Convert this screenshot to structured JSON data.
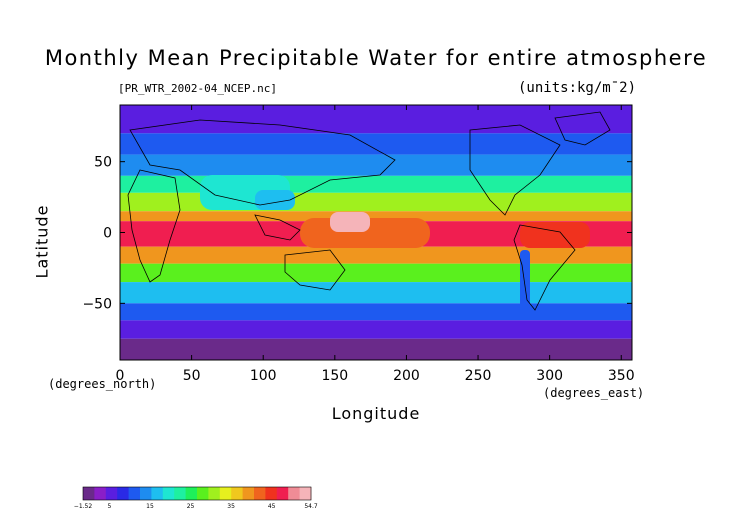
{
  "title": "Monthly Mean Precipitable Water for entire atmosphere",
  "filename": "[PR_WTR_2002-04_NCEP.nc]",
  "units": "(units:kg/m¯2)",
  "map": {
    "type": "heatmap",
    "xlabel": "Longitude",
    "ylabel": "Latitude",
    "x_units": "(degrees_east)",
    "y_units": "(degrees_north)",
    "xlim": [
      0,
      357.5
    ],
    "ylim": [
      -90,
      90
    ],
    "x_ticks": [
      {
        "value": 0,
        "label": "0"
      },
      {
        "value": 50,
        "label": "50"
      },
      {
        "value": 100,
        "label": "100"
      },
      {
        "value": 150,
        "label": "150"
      },
      {
        "value": 200,
        "label": "200"
      },
      {
        "value": 250,
        "label": "250"
      },
      {
        "value": 300,
        "label": "300"
      },
      {
        "value": 350,
        "label": "350"
      }
    ],
    "y_ticks": [
      {
        "value": 50,
        "label": "50"
      },
      {
        "value": 0,
        "label": "0"
      },
      {
        "value": -50,
        "label": "−50"
      }
    ],
    "bands": [
      {
        "lat_min": 70,
        "lat_max": 90,
        "value": 5
      },
      {
        "lat_min": 55,
        "lat_max": 70,
        "value": 10
      },
      {
        "lat_min": 40,
        "lat_max": 55,
        "value": 15
      },
      {
        "lat_min": 28,
        "lat_max": 40,
        "value": 22
      },
      {
        "lat_min": 15,
        "lat_max": 28,
        "value": 32
      },
      {
        "lat_min": 8,
        "lat_max": 15,
        "value": 40
      },
      {
        "lat_min": -10,
        "lat_max": 8,
        "value": 48
      },
      {
        "lat_min": -22,
        "lat_max": -10,
        "value": 38
      },
      {
        "lat_min": -35,
        "lat_max": -22,
        "value": 27
      },
      {
        "lat_min": -50,
        "lat_max": -35,
        "value": 17
      },
      {
        "lat_min": -62,
        "lat_max": -50,
        "value": 10
      },
      {
        "lat_min": -75,
        "lat_max": -62,
        "value": 5
      },
      {
        "lat_min": -90,
        "lat_max": -75,
        "value": 1
      }
    ]
  },
  "colorbar": {
    "min": -1.52,
    "max": 54.7,
    "tick_labels": [
      "−1.52",
      "5",
      "15",
      "25",
      "35",
      "45",
      "54.7"
    ],
    "colors": [
      "#6a2a8a",
      "#8a1ec8",
      "#5a1ee0",
      "#2a2ae6",
      "#1e5af0",
      "#1e8cf0",
      "#1ebef0",
      "#1ee6d2",
      "#1ef0a0",
      "#1ef05a",
      "#5af01e",
      "#a0f01e",
      "#e6f01e",
      "#f0c81e",
      "#f0961e",
      "#f0641e",
      "#f0321e",
      "#f01e50",
      "#f08c96",
      "#f5b4b9"
    ]
  }
}
